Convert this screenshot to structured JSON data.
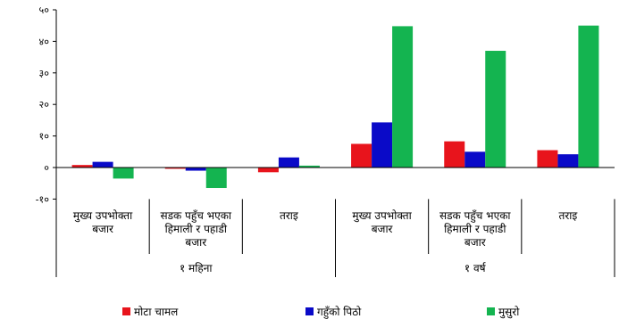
{
  "chart_data": {
    "type": "bar",
    "title": "",
    "xlabel": "",
    "ylabel": "",
    "ylim": [
      -10,
      50
    ],
    "yticks": [
      -10,
      0,
      10,
      20,
      30,
      40,
      50
    ],
    "ytick_labels": [
      "-१०",
      "०",
      "१०",
      "२०",
      "३०",
      "४०",
      "५०"
    ],
    "grid": false,
    "legend_position": "bottom",
    "categories": [
      [
        "मुख्य उपभोक्ता",
        "बजार"
      ],
      [
        "सडक पहुँच भएका",
        "हिमाली र पहाडी",
        "बजार"
      ],
      [
        "तराइ"
      ],
      [
        "मुख्य उपभोक्ता",
        "बजार"
      ],
      [
        "सडक पहुँच भएका",
        "हिमाली र पहाडी",
        "बजार"
      ],
      [
        "तराइ"
      ]
    ],
    "groups": [
      {
        "label": "१ महिना",
        "span": 3
      },
      {
        "label": "१ वर्ष",
        "span": 3
      }
    ],
    "series": [
      {
        "name": "मोटा चामल",
        "color": "#e8141c",
        "values": [
          0.8,
          -0.4,
          -1.5,
          7.5,
          8.3,
          5.5
        ]
      },
      {
        "name": "गहुँको पिठो",
        "color": "#0a0ac8",
        "values": [
          1.8,
          -1.0,
          3.2,
          14.3,
          5.0,
          4.2
        ]
      },
      {
        "name": "मुसुरो",
        "color": "#14b450",
        "values": [
          -3.5,
          -6.5,
          0.6,
          44.8,
          37.0,
          45.0
        ]
      }
    ]
  }
}
